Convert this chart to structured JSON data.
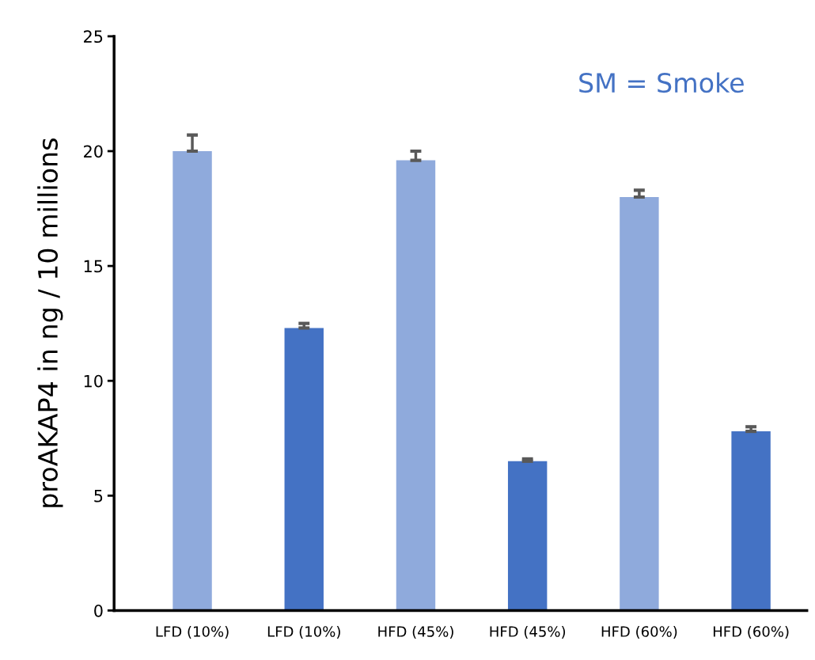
{
  "chart_data": {
    "type": "bar",
    "ylabel": "proAKAP4 in ng / 10 millions",
    "categories": [
      "LFD (10%)",
      "LFD (10%)",
      "HFD (45%)",
      "HFD (45%)",
      "HFD (60%)",
      "HFD (60%)"
    ],
    "values": [
      20.0,
      12.3,
      19.6,
      6.5,
      18.0,
      7.8
    ],
    "colors": [
      "#8faadc",
      "#4472c4",
      "#8faadc",
      "#4472c4",
      "#8faadc",
      "#4472c4"
    ],
    "errors": [
      [
        20.0,
        20.7
      ],
      [
        12.3,
        12.5
      ],
      [
        19.6,
        20.0
      ],
      [
        6.5,
        6.6
      ],
      [
        18.0,
        18.3
      ],
      [
        7.8,
        8.0
      ]
    ],
    "ylim": [
      0,
      25
    ],
    "yticks": [
      0,
      5,
      10,
      15,
      20,
      25
    ],
    "grid": false,
    "annotations": [
      "SM = Smoke"
    ]
  }
}
